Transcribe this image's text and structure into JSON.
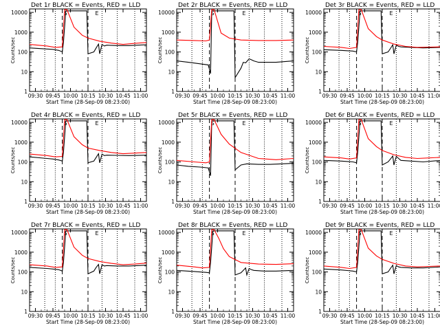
{
  "legend_text": "BLACK = Events, RED = LLD",
  "xlabel": "Start Time (28-Sep-09 08:23:00)",
  "ylabel": "Counts/sec",
  "x_ticks": [
    "09:30",
    "09:45",
    "10:00",
    "10:15",
    "10:30",
    "10:45",
    "11:00"
  ],
  "y_ticks": [
    "1",
    "10",
    "100",
    "1000",
    "10000"
  ],
  "colors": {
    "events": "#000000",
    "lld": "#ff0000",
    "axis": "#000000"
  },
  "markers": {
    "saa_in": "S",
    "saa_out": "E"
  },
  "chart_data": [
    {
      "type": "line",
      "title": "Det 1r",
      "xlabel": "Start Time (28-Sep-09 08:23:00)",
      "ylabel": "Counts/sec",
      "xlim": [
        0,
        100
      ],
      "ylim": [
        1,
        15000
      ],
      "yscale": "log",
      "series": [
        {
          "name": "Events",
          "color": "#000000",
          "x": [
            0,
            15,
            20,
            25,
            28,
            29,
            31,
            33,
            49,
            50,
            55,
            57,
            59,
            60,
            62,
            64,
            66,
            75,
            85,
            100
          ],
          "y": [
            160,
            140,
            135,
            120,
            100,
            300,
            12000,
            12000,
            12000,
            80,
            100,
            160,
            250,
            80,
            240,
            200,
            220,
            210,
            210,
            230
          ]
        },
        {
          "name": "LLD",
          "color": "#ff0000",
          "x": [
            0,
            15,
            22,
            28,
            30,
            32,
            38,
            45,
            50,
            60,
            70,
            80,
            90,
            100
          ],
          "y": [
            240,
            200,
            170,
            180,
            14000,
            14000,
            1800,
            700,
            500,
            350,
            280,
            240,
            270,
            300
          ]
        }
      ]
    },
    {
      "type": "line",
      "title": "Det 2r",
      "xlabel": "Start Time (28-Sep-09 08:23:00)",
      "ylabel": "Counts/sec",
      "xlim": [
        0,
        100
      ],
      "ylim": [
        1,
        15000
      ],
      "yscale": "log",
      "series": [
        {
          "name": "Events",
          "color": "#000000",
          "x": [
            0,
            10,
            20,
            27,
            29,
            30,
            33,
            49,
            50,
            55,
            57,
            59,
            62,
            64,
            66,
            70,
            85,
            100
          ],
          "y": [
            35,
            30,
            25,
            22,
            8,
            12000,
            12000,
            12000,
            5,
            15,
            30,
            28,
            45,
            40,
            35,
            30,
            30,
            35
          ]
        },
        {
          "name": "LLD",
          "color": "#ff0000",
          "x": [
            0,
            15,
            25,
            28,
            30,
            32,
            38,
            45,
            55,
            70,
            85,
            100
          ],
          "y": [
            400,
            380,
            360,
            400,
            14000,
            14000,
            900,
            500,
            400,
            380,
            380,
            400
          ]
        }
      ]
    },
    {
      "type": "line",
      "title": "Det 3r",
      "xlabel": "Start Time (28-Sep-09 08:23:00)",
      "ylabel": "Counts/sec",
      "xlim": [
        0,
        100
      ],
      "ylim": [
        1,
        15000
      ],
      "yscale": "log",
      "series": [
        {
          "name": "Events",
          "color": "#000000",
          "x": [
            0,
            15,
            25,
            28,
            29,
            31,
            33,
            49,
            50,
            55,
            57,
            59,
            60,
            62,
            64,
            66,
            75,
            85,
            100
          ],
          "y": [
            130,
            120,
            110,
            100,
            300,
            12000,
            12000,
            12000,
            80,
            100,
            150,
            230,
            80,
            220,
            190,
            180,
            170,
            160,
            170
          ]
        },
        {
          "name": "LLD",
          "color": "#ff0000",
          "x": [
            0,
            15,
            22,
            28,
            30,
            32,
            38,
            45,
            50,
            60,
            70,
            80,
            90,
            100
          ],
          "y": [
            190,
            170,
            150,
            170,
            14000,
            14000,
            1500,
            600,
            400,
            250,
            190,
            170,
            175,
            180
          ]
        }
      ]
    },
    {
      "type": "line",
      "title": "Det 4r",
      "xlabel": "Start Time (28-Sep-09 08:23:00)",
      "ylabel": "Counts/sec",
      "xlim": [
        0,
        100
      ],
      "ylim": [
        1,
        15000
      ],
      "yscale": "log",
      "series": [
        {
          "name": "Events",
          "color": "#000000",
          "x": [
            0,
            15,
            20,
            25,
            28,
            29,
            31,
            33,
            49,
            50,
            55,
            57,
            59,
            60,
            62,
            64,
            66,
            75,
            85,
            100
          ],
          "y": [
            180,
            150,
            140,
            125,
            110,
            300,
            12000,
            12000,
            12000,
            90,
            110,
            170,
            260,
            90,
            250,
            210,
            220,
            215,
            210,
            220
          ]
        },
        {
          "name": "LLD",
          "color": "#ff0000",
          "x": [
            0,
            15,
            22,
            28,
            30,
            32,
            38,
            45,
            50,
            60,
            70,
            80,
            90,
            100
          ],
          "y": [
            250,
            210,
            180,
            190,
            14000,
            14000,
            1900,
            750,
            500,
            380,
            300,
            260,
            280,
            300
          ]
        }
      ]
    },
    {
      "type": "line",
      "title": "Det 5r",
      "xlabel": "Start Time (28-Sep-09 08:23:00)",
      "ylabel": "Counts/sec",
      "xlim": [
        0,
        100
      ],
      "ylim": [
        1,
        15000
      ],
      "yscale": "log",
      "series": [
        {
          "name": "Events",
          "color": "#000000",
          "x": [
            0,
            10,
            20,
            27,
            29,
            30,
            33,
            49,
            50,
            55,
            60,
            70,
            80,
            90,
            100
          ],
          "y": [
            70,
            60,
            55,
            50,
            20,
            12000,
            12000,
            12000,
            40,
            70,
            80,
            75,
            75,
            80,
            85
          ]
        },
        {
          "name": "LLD",
          "color": "#ff0000",
          "x": [
            0,
            15,
            25,
            28,
            30,
            32,
            38,
            45,
            55,
            70,
            85,
            100
          ],
          "y": [
            120,
            100,
            90,
            100,
            14000,
            14000,
            2500,
            800,
            300,
            150,
            130,
            150
          ]
        }
      ]
    },
    {
      "type": "line",
      "title": "Det 6r",
      "xlabel": "Start Time (28-Sep-09 08:23:00)",
      "ylabel": "Counts/sec",
      "xlim": [
        0,
        100
      ],
      "ylim": [
        1,
        15000
      ],
      "yscale": "log",
      "series": [
        {
          "name": "Events",
          "color": "#000000",
          "x": [
            0,
            15,
            25,
            28,
            29,
            31,
            33,
            49,
            50,
            55,
            57,
            59,
            60,
            62,
            64,
            66,
            75,
            85,
            100
          ],
          "y": [
            120,
            110,
            100,
            90,
            300,
            12000,
            12000,
            12000,
            70,
            100,
            140,
            200,
            70,
            190,
            150,
            120,
            110,
            100,
            120
          ]
        },
        {
          "name": "LLD",
          "color": "#ff0000",
          "x": [
            0,
            15,
            22,
            28,
            30,
            32,
            38,
            45,
            50,
            60,
            70,
            80,
            90,
            100
          ],
          "y": [
            180,
            160,
            140,
            160,
            14000,
            14000,
            1500,
            600,
            380,
            230,
            170,
            150,
            160,
            170
          ]
        }
      ]
    },
    {
      "type": "line",
      "title": "Det 7r",
      "xlabel": "Start Time (28-Sep-09 08:23:00)",
      "ylabel": "Counts/sec",
      "xlim": [
        0,
        100
      ],
      "ylim": [
        1,
        15000
      ],
      "yscale": "log",
      "series": [
        {
          "name": "Events",
          "color": "#000000",
          "x": [
            0,
            15,
            20,
            25,
            28,
            29,
            31,
            33,
            49,
            50,
            55,
            57,
            59,
            60,
            62,
            64,
            66,
            75,
            85,
            100
          ],
          "y": [
            170,
            150,
            140,
            130,
            110,
            300,
            12000,
            12000,
            12000,
            80,
            110,
            170,
            240,
            80,
            230,
            200,
            210,
            200,
            200,
            220
          ]
        },
        {
          "name": "LLD",
          "color": "#ff0000",
          "x": [
            0,
            15,
            22,
            28,
            30,
            32,
            38,
            45,
            50,
            60,
            70,
            80,
            90,
            100
          ],
          "y": [
            230,
            200,
            170,
            180,
            14000,
            14000,
            1800,
            700,
            480,
            340,
            270,
            230,
            250,
            280
          ]
        }
      ]
    },
    {
      "type": "line",
      "title": "Det 8r",
      "xlabel": "Start Time (28-Sep-09 08:23:00)",
      "ylabel": "Counts/sec",
      "xlim": [
        0,
        100
      ],
      "ylim": [
        1,
        15000
      ],
      "yscale": "log",
      "series": [
        {
          "name": "Events",
          "color": "#000000",
          "x": [
            0,
            15,
            25,
            28,
            29,
            31,
            33,
            49,
            50,
            55,
            57,
            59,
            60,
            62,
            64,
            66,
            75,
            85,
            100
          ],
          "y": [
            120,
            105,
            95,
            90,
            300,
            12000,
            12000,
            12000,
            70,
            90,
            120,
            160,
            70,
            150,
            130,
            120,
            110,
            110,
            120
          ]
        },
        {
          "name": "LLD",
          "color": "#ff0000",
          "x": [
            0,
            15,
            22,
            28,
            30,
            32,
            36,
            40,
            45,
            55,
            70,
            85,
            100
          ],
          "y": [
            220,
            180,
            160,
            170,
            14000,
            14000,
            5000,
            1500,
            600,
            300,
            250,
            240,
            260
          ]
        }
      ]
    },
    {
      "type": "line",
      "title": "Det 9r",
      "xlabel": "Start Time (28-Sep-09 08:23:00)",
      "ylabel": "Counts/sec",
      "xlim": [
        0,
        100
      ],
      "ylim": [
        1,
        15000
      ],
      "yscale": "log",
      "series": [
        {
          "name": "Events",
          "color": "#000000",
          "x": [
            0,
            15,
            25,
            28,
            29,
            31,
            33,
            49,
            50,
            55,
            57,
            59,
            60,
            62,
            64,
            66,
            75,
            85,
            100
          ],
          "y": [
            140,
            125,
            110,
            100,
            300,
            12000,
            12000,
            12000,
            80,
            100,
            150,
            220,
            80,
            210,
            180,
            170,
            160,
            160,
            180
          ]
        },
        {
          "name": "LLD",
          "color": "#ff0000",
          "x": [
            0,
            15,
            22,
            28,
            30,
            32,
            38,
            45,
            50,
            60,
            70,
            80,
            90,
            100
          ],
          "y": [
            200,
            170,
            150,
            170,
            14000,
            14000,
            1600,
            650,
            430,
            270,
            200,
            180,
            190,
            200
          ]
        }
      ]
    }
  ]
}
